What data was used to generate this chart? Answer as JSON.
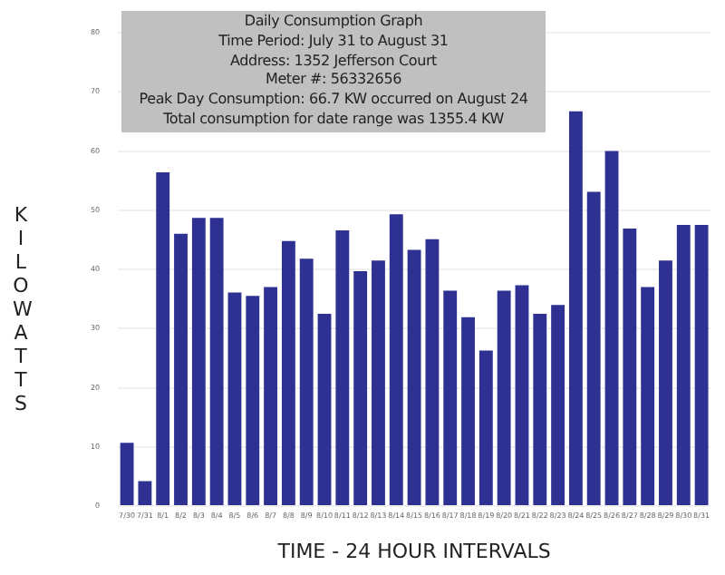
{
  "chart_data": {
    "type": "bar",
    "title": "Daily Consumption Graph",
    "annotations": [
      "Time Period: July 31 to August 31",
      "Address: 1352 Jefferson Court",
      "Meter #: 56332656",
      "Peak Day Consumption:  66.7 KW occurred on August 24",
      "Total consumption for date range was 1355.4 KW"
    ],
    "xlabel": "TIME - 24 HOUR INTERVALS",
    "ylabel": "KILOWATTS",
    "categories": [
      "7/30",
      "7/31",
      "8/1",
      "8/2",
      "8/3",
      "8/4",
      "8/5",
      "8/6",
      "8/7",
      "8/8",
      "8/9",
      "8/10",
      "8/11",
      "8/12",
      "8/13",
      "8/14",
      "8/15",
      "8/16",
      "8/17",
      "8/18",
      "8/19",
      "8/20",
      "8/21",
      "8/22",
      "8/23",
      "8/24",
      "8/25",
      "8/26",
      "8/27",
      "8/28",
      "8/29",
      "8/30",
      "8/31"
    ],
    "values": [
      10.7,
      4.2,
      56.4,
      46,
      48.7,
      48.7,
      36.1,
      35.5,
      37,
      44.8,
      41.8,
      32.5,
      46.6,
      39.7,
      41.5,
      49.3,
      43.3,
      45.1,
      36.4,
      31.9,
      26.3,
      36.4,
      37.3,
      32.5,
      34,
      66.7,
      53.1,
      60,
      46.9,
      37,
      41.5,
      47.5,
      47.5
    ],
    "color": "#2e3192",
    "ylim": [
      0,
      80
    ],
    "yticks": [
      0,
      10,
      20,
      30,
      40,
      50,
      60,
      70,
      80
    ],
    "grid": "y",
    "legend": false
  }
}
